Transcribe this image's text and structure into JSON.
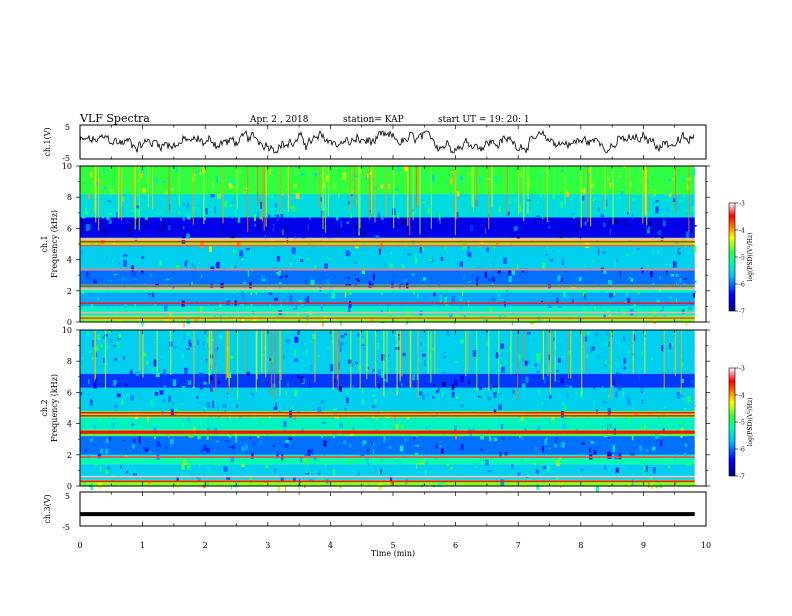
{
  "header": {
    "title": "VLF Spectra",
    "date": "Apr. 2 , 2018",
    "station": "station= KAP",
    "start": "start UT =  19: 20: 1"
  },
  "chart_data": [
    {
      "type": "line",
      "panel": "ch1-waveform",
      "ylabel": "ch.1(V)",
      "ylim": [
        -5,
        5
      ],
      "yticks": [
        "5",
        "-5"
      ],
      "x_range_min": [
        0,
        9.82
      ],
      "note_values": "continuous noisy waveform roughly between -3 V and 3 V"
    },
    {
      "type": "heatmap",
      "panel": "ch1-spectrogram",
      "ylabel_line1": "ch.1",
      "ylabel_line2": "Frequency (kHz)",
      "ylim": [
        0,
        10
      ],
      "yticks": [
        "0",
        "2",
        "4",
        "6",
        "8",
        "10"
      ],
      "colorbar": {
        "label": "log(PSD)(V²/Hz)",
        "ticks": [
          "-3",
          "-4",
          "-5",
          "-6",
          "-7"
        ],
        "range": [
          -7,
          -3
        ]
      },
      "bands_khz": [
        {
          "range": [
            0.0,
            0.4
          ],
          "level": -4.6
        },
        {
          "range": [
            0.4,
            1.0
          ],
          "level": -5.3
        },
        {
          "range": [
            1.0,
            1.9
          ],
          "level": -5.8
        },
        {
          "range": [
            1.9,
            2.4
          ],
          "level": -5.2
        },
        {
          "range": [
            2.4,
            3.4
          ],
          "level": -6.0
        },
        {
          "range": [
            3.4,
            4.9
          ],
          "level": -5.6
        },
        {
          "range": [
            4.9,
            5.4
          ],
          "level": -4.6
        },
        {
          "range": [
            5.4,
            6.7
          ],
          "level": -6.5
        },
        {
          "range": [
            6.7,
            8.2
          ],
          "level": -5.5
        },
        {
          "range": [
            8.2,
            10.0
          ],
          "level": -4.8
        }
      ],
      "lines_khz": [
        0.25,
        0.6,
        1.2,
        2.1,
        2.3,
        3.35,
        4.9,
        5.15,
        5.3
      ]
    },
    {
      "type": "heatmap",
      "panel": "ch2-spectrogram",
      "ylabel_line1": "ch.2",
      "ylabel_line2": "Frequency (kHz)",
      "ylim": [
        0,
        10
      ],
      "yticks": [
        "0",
        "2",
        "4",
        "6",
        "8",
        "10"
      ],
      "colorbar": {
        "label": "log(PSD)(V²/Hz)",
        "ticks": [
          "-3",
          "-4",
          "-5",
          "-6",
          "-7"
        ],
        "range": [
          -7,
          -3
        ]
      },
      "bands_khz": [
        {
          "range": [
            0.0,
            0.4
          ],
          "level": -4.6
        },
        {
          "range": [
            0.4,
            1.4
          ],
          "level": -5.6
        },
        {
          "range": [
            1.4,
            2.0
          ],
          "level": -5.2
        },
        {
          "range": [
            2.0,
            3.2
          ],
          "level": -6.0
        },
        {
          "range": [
            3.2,
            3.6
          ],
          "level": -4.7
        },
        {
          "range": [
            3.6,
            4.4
          ],
          "level": -5.3
        },
        {
          "range": [
            4.4,
            4.8
          ],
          "level": -4.6
        },
        {
          "range": [
            4.8,
            6.3
          ],
          "level": -5.6
        },
        {
          "range": [
            6.3,
            7.2
          ],
          "level": -6.2
        },
        {
          "range": [
            7.2,
            10.0
          ],
          "level": -5.6
        }
      ],
      "lines_khz": [
        0.3,
        0.6,
        1.85,
        3.4,
        3.5,
        4.5,
        4.7
      ]
    },
    {
      "type": "line",
      "panel": "ch3-waveform",
      "ylabel": "ch.3(V)",
      "ylim": [
        -5,
        5
      ],
      "yticks": [
        "5",
        "-5"
      ],
      "constant_value": -1.5,
      "x_range_min": [
        0,
        9.82
      ],
      "xlabel": "Time  (min)",
      "xlim": [
        0,
        10
      ],
      "xticks": [
        "0",
        "1",
        "2",
        "3",
        "4",
        "5",
        "6",
        "7",
        "8",
        "9",
        "10"
      ]
    }
  ]
}
